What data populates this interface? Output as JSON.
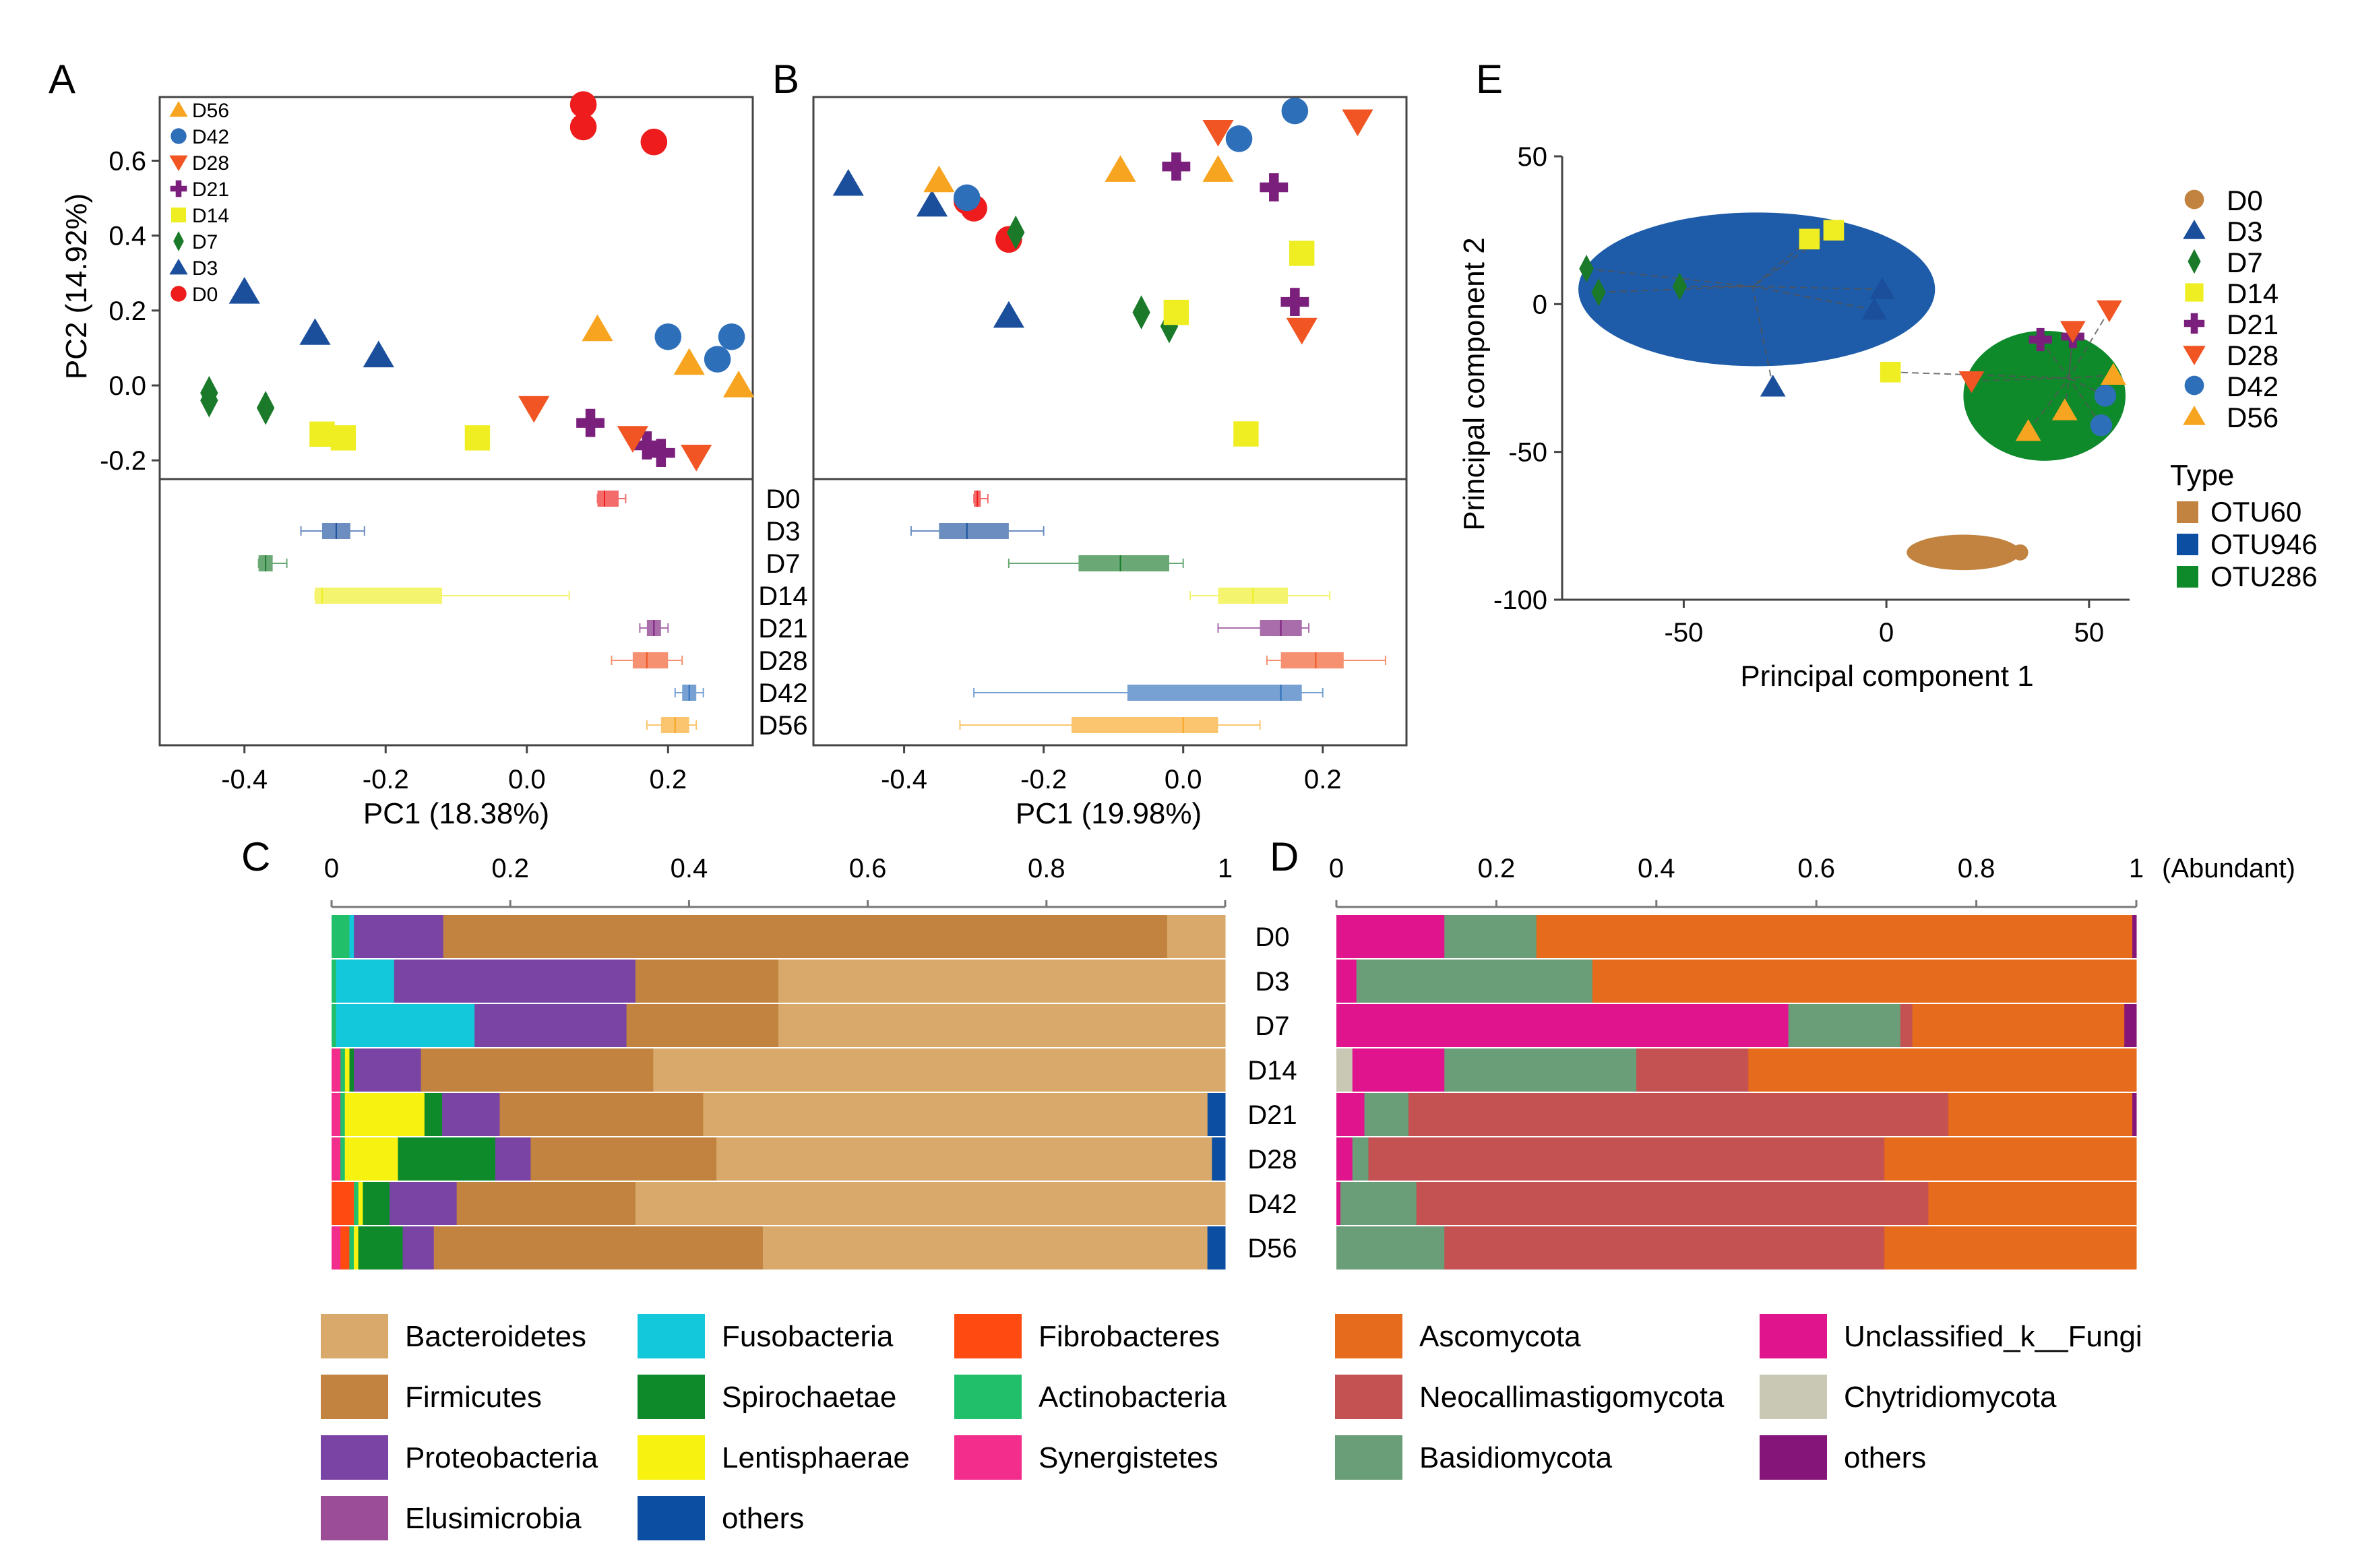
{
  "figure": {
    "panel_labels": [
      "A",
      "B",
      "C",
      "D",
      "E"
    ],
    "samples": [
      "D0",
      "D3",
      "D7",
      "D14",
      "D21",
      "D28",
      "D42",
      "D56"
    ],
    "sample_colors": {
      "D0": "#ee1c1c",
      "D3": "#1b4f9c",
      "D7": "#1a7a2a",
      "D14": "#eeee22",
      "D21": "#7b1f7d",
      "D28": "#f05523",
      "D42": "#2e6fba",
      "D56": "#f7a520"
    },
    "sample_shapes": {
      "D0": "circle",
      "D3": "triangle-up",
      "D7": "diamond",
      "D14": "square",
      "D21": "cross",
      "D28": "triangle-down",
      "D42": "circle",
      "D56": "triangle-up"
    },
    "legend_order_A": [
      "D56",
      "D42",
      "D28",
      "D21",
      "D14",
      "D7",
      "D3",
      "D0"
    ],
    "legend_order_E": [
      "D0",
      "D3",
      "D7",
      "D14",
      "D21",
      "D28",
      "D42",
      "D56"
    ]
  },
  "chart_data": [
    {
      "id": "A",
      "type": "scatter",
      "xlabel": "PC1 (18.38%)",
      "ylabel": "PC2 (14.92%)",
      "xlim": [
        -0.52,
        0.32
      ],
      "ylim": [
        -0.25,
        0.77
      ],
      "xticks": [
        "-0.4",
        "-0.2",
        "0.0",
        "0.2"
      ],
      "xtick_values": [
        -0.4,
        -0.2,
        0.0,
        0.2
      ],
      "yticks": [
        "-0.2",
        "0.0",
        "0.2",
        "0.4",
        "0.6"
      ],
      "ytick_values": [
        -0.2,
        0.0,
        0.2,
        0.4,
        0.6
      ],
      "points": {
        "D0": [
          [
            0.08,
            0.75
          ],
          [
            0.08,
            0.69
          ],
          [
            0.18,
            0.65
          ]
        ],
        "D3": [
          [
            -0.4,
            0.25
          ],
          [
            -0.3,
            0.14
          ],
          [
            -0.21,
            0.08
          ]
        ],
        "D7": [
          [
            -0.45,
            -0.02
          ],
          [
            -0.45,
            -0.04
          ],
          [
            -0.37,
            -0.06
          ]
        ],
        "D14": [
          [
            -0.29,
            -0.13
          ],
          [
            -0.26,
            -0.14
          ],
          [
            -0.07,
            -0.14
          ]
        ],
        "D21": [
          [
            0.09,
            -0.1
          ],
          [
            0.17,
            -0.16
          ],
          [
            0.19,
            -0.18
          ]
        ],
        "D28": [
          [
            0.01,
            -0.06
          ],
          [
            0.15,
            -0.14
          ],
          [
            0.24,
            -0.19
          ]
        ],
        "D42": [
          [
            0.2,
            0.13
          ],
          [
            0.29,
            0.13
          ],
          [
            0.27,
            0.07
          ]
        ],
        "D56": [
          [
            0.1,
            0.15
          ],
          [
            0.23,
            0.06
          ],
          [
            0.3,
            0.0
          ]
        ]
      },
      "boxplots": {
        "D0": {
          "whisker": [
            0.1,
            0.14
          ],
          "box": [
            0.1,
            0.13
          ],
          "median": 0.11
        },
        "D3": {
          "whisker": [
            -0.32,
            -0.23
          ],
          "box": [
            -0.29,
            -0.25
          ],
          "median": -0.27
        },
        "D7": {
          "whisker": [
            -0.38,
            -0.34
          ],
          "box": [
            -0.38,
            -0.36
          ],
          "median": -0.37
        },
        "D14": {
          "whisker": [
            -0.3,
            0.06
          ],
          "box": [
            -0.3,
            -0.12
          ],
          "median": -0.29
        },
        "D21": {
          "whisker": [
            0.16,
            0.2
          ],
          "box": [
            0.17,
            0.19
          ],
          "median": 0.18
        },
        "D28": {
          "whisker": [
            0.12,
            0.22
          ],
          "box": [
            0.15,
            0.2
          ],
          "median": 0.17
        },
        "D42": {
          "whisker": [
            0.21,
            0.25
          ],
          "box": [
            0.22,
            0.24
          ],
          "median": 0.23
        },
        "D56": {
          "whisker": [
            0.17,
            0.24
          ],
          "box": [
            0.19,
            0.23
          ],
          "median": 0.21
        }
      }
    },
    {
      "id": "B",
      "type": "scatter",
      "xlabel": "PC1 (19.98%)",
      "ylabel": "",
      "xlim": [
        -0.53,
        0.32
      ],
      "ylim": [
        -0.35,
        0.75
      ],
      "xticks": [
        "-0.4",
        "-0.2",
        "0.0",
        "0.2"
      ],
      "xtick_values": [
        -0.4,
        -0.2,
        0.0,
        0.2
      ],
      "points": {
        "D0": [
          [
            -0.31,
            0.45
          ],
          [
            -0.3,
            0.43
          ],
          [
            -0.25,
            0.34
          ]
        ],
        "D3": [
          [
            -0.48,
            0.5
          ],
          [
            -0.36,
            0.44
          ],
          [
            -0.25,
            0.12
          ]
        ],
        "D7": [
          [
            -0.24,
            0.36
          ],
          [
            -0.06,
            0.13
          ],
          [
            -0.02,
            0.09
          ]
        ],
        "D14": [
          [
            -0.01,
            0.13
          ],
          [
            0.17,
            0.3
          ],
          [
            0.09,
            -0.22
          ]
        ],
        "D21": [
          [
            -0.01,
            0.55
          ],
          [
            0.13,
            0.49
          ],
          [
            0.16,
            0.16
          ]
        ],
        "D28": [
          [
            0.05,
            0.65
          ],
          [
            0.25,
            0.68
          ],
          [
            0.17,
            0.08
          ]
        ],
        "D42": [
          [
            -0.31,
            0.46
          ],
          [
            0.08,
            0.63
          ],
          [
            0.16,
            0.71
          ]
        ],
        "D56": [
          [
            -0.35,
            0.51
          ],
          [
            -0.09,
            0.54
          ],
          [
            0.05,
            0.54
          ]
        ]
      },
      "boxplots": {
        "D0": {
          "whisker": [
            -0.3,
            -0.28
          ],
          "box": [
            -0.3,
            -0.29
          ],
          "median": -0.295
        },
        "D3": {
          "whisker": [
            -0.39,
            -0.2
          ],
          "box": [
            -0.35,
            -0.25
          ],
          "median": -0.31
        },
        "D7": {
          "whisker": [
            -0.25,
            0.0
          ],
          "box": [
            -0.15,
            -0.02
          ],
          "median": -0.09
        },
        "D14": {
          "whisker": [
            0.01,
            0.21
          ],
          "box": [
            0.05,
            0.15
          ],
          "median": 0.1
        },
        "D21": {
          "whisker": [
            0.05,
            0.18
          ],
          "box": [
            0.11,
            0.17
          ],
          "median": 0.14
        },
        "D28": {
          "whisker": [
            0.12,
            0.29
          ],
          "box": [
            0.14,
            0.23
          ],
          "median": 0.19
        },
        "D42": {
          "whisker": [
            -0.3,
            0.2
          ],
          "box": [
            -0.08,
            0.17
          ],
          "median": 0.14
        },
        "D56": {
          "whisker": [
            -0.32,
            0.11
          ],
          "box": [
            -0.16,
            0.05
          ],
          "median": 0.0
        }
      }
    },
    {
      "id": "C",
      "type": "bar",
      "orientation": "horizontal-stacked",
      "xlim": [
        0,
        1
      ],
      "xticks": [
        "0",
        "0.2",
        "0.4",
        "0.6",
        "0.8",
        "1"
      ],
      "xtick_values": [
        0,
        0.2,
        0.4,
        0.6,
        0.8,
        1
      ],
      "categories": [
        "D0",
        "D3",
        "D7",
        "D14",
        "D21",
        "D28",
        "D42",
        "D56"
      ],
      "series": [
        {
          "name": "Synergistetes",
          "color": "#f22d8c",
          "values": [
            0.0,
            0.0,
            0.0,
            0.01,
            0.01,
            0.01,
            0.0,
            0.01
          ]
        },
        {
          "name": "Fibrobacteres",
          "color": "#ff4a12",
          "values": [
            0.0,
            0.0,
            0.0,
            0.0,
            0.0,
            0.0,
            0.025,
            0.01
          ]
        },
        {
          "name": "Actinobacteria",
          "color": "#22bf6b",
          "values": [
            0.02,
            0.005,
            0.005,
            0.005,
            0.005,
            0.005,
            0.005,
            0.005
          ]
        },
        {
          "name": "Lentisphaerae",
          "color": "#f7f20f",
          "values": [
            0.0,
            0.0,
            0.0,
            0.005,
            0.09,
            0.06,
            0.005,
            0.005
          ]
        },
        {
          "name": "Spirochaetae",
          "color": "#0e8a2b",
          "values": [
            0.0,
            0.0,
            0.0,
            0.005,
            0.02,
            0.11,
            0.03,
            0.05
          ]
        },
        {
          "name": "Fusobacteria",
          "color": "#14c8dc",
          "values": [
            0.005,
            0.065,
            0.155,
            0.0,
            0.0,
            0.0,
            0.0,
            0.0
          ]
        },
        {
          "name": "Elusimicrobia",
          "color": "#9b4d97",
          "values": [
            0.0,
            0.0,
            0.0,
            0.0,
            0.0,
            0.0,
            0.0,
            0.0
          ]
        },
        {
          "name": "Proteobacteria",
          "color": "#7a44a5",
          "values": [
            0.1,
            0.27,
            0.17,
            0.075,
            0.065,
            0.04,
            0.075,
            0.035
          ]
        },
        {
          "name": "Firmicutes",
          "color": "#c1833f",
          "values": [
            0.81,
            0.16,
            0.17,
            0.26,
            0.23,
            0.21,
            0.2,
            0.37
          ]
        },
        {
          "name": "Bacteroidetes",
          "color": "#d8a96a",
          "values": [
            0.065,
            0.5,
            0.5,
            0.64,
            0.57,
            0.56,
            0.66,
            0.5
          ]
        },
        {
          "name": "others",
          "color": "#0b4ea2",
          "values": [
            0.0,
            0.0,
            0.0,
            0.0,
            0.02,
            0.015,
            0.0,
            0.02
          ]
        }
      ],
      "legend": [
        {
          "name": "Bacteroidetes",
          "color": "#d8a96a"
        },
        {
          "name": "Firmicutes",
          "color": "#c1833f"
        },
        {
          "name": "Proteobacteria",
          "color": "#7a44a5"
        },
        {
          "name": "Elusimicrobia",
          "color": "#9b4d97"
        },
        {
          "name": "Fusobacteria",
          "color": "#14c8dc"
        },
        {
          "name": "Spirochaetae",
          "color": "#0e8a2b"
        },
        {
          "name": "Lentisphaerae",
          "color": "#f7f20f"
        },
        {
          "name": "others",
          "color": "#0b4ea2"
        },
        {
          "name": "Fibrobacteres",
          "color": "#ff4a12"
        },
        {
          "name": "Actinobacteria",
          "color": "#22bf6b"
        },
        {
          "name": "Synergistetes",
          "color": "#f22d8c"
        }
      ]
    },
    {
      "id": "D",
      "type": "bar",
      "orientation": "horizontal-stacked",
      "xlim": [
        0,
        1
      ],
      "xticks": [
        "0",
        "0.2",
        "0.4",
        "0.6",
        "0.8",
        "1"
      ],
      "xtick_values": [
        0,
        0.2,
        0.4,
        0.6,
        0.8,
        1
      ],
      "axis_note": "(Abundant)",
      "categories": [
        "D0",
        "D3",
        "D7",
        "D14",
        "D21",
        "D28",
        "D42",
        "D56"
      ],
      "series": [
        {
          "name": "Chytridiomycota",
          "color": "#c8c8b4",
          "values": [
            0.0,
            0.0,
            0.0,
            0.02,
            0.0,
            0.0,
            0.0,
            0.0
          ]
        },
        {
          "name": "Unclassified_k__Fungi",
          "color": "#e0148c",
          "values": [
            0.135,
            0.025,
            0.565,
            0.115,
            0.035,
            0.02,
            0.005,
            0.0
          ]
        },
        {
          "name": "Basidiomycota",
          "color": "#6a9e78",
          "values": [
            0.115,
            0.295,
            0.14,
            0.24,
            0.055,
            0.02,
            0.095,
            0.135
          ]
        },
        {
          "name": "Neocallimastigomycota",
          "color": "#c45252",
          "values": [
            0.0,
            0.0,
            0.015,
            0.14,
            0.675,
            0.645,
            0.64,
            0.55
          ]
        },
        {
          "name": "Ascomycota",
          "color": "#e66b1c",
          "values": [
            0.745,
            0.68,
            0.265,
            0.485,
            0.23,
            0.315,
            0.26,
            0.315
          ]
        },
        {
          "name": "others",
          "color": "#86157a",
          "values": [
            0.005,
            0.0,
            0.015,
            0.0,
            0.005,
            0.0,
            0.0,
            0.0
          ]
        }
      ],
      "legend": [
        {
          "name": "Ascomycota",
          "color": "#e66b1c"
        },
        {
          "name": "Neocallimastigomycota",
          "color": "#c45252"
        },
        {
          "name": "Basidiomycota",
          "color": "#6a9e78"
        },
        {
          "name": "Unclassified_k__Fungi",
          "color": "#e0148c"
        },
        {
          "name": "Chytridiomycota",
          "color": "#c8c8b4"
        },
        {
          "name": "others",
          "color": "#86157a"
        }
      ]
    },
    {
      "id": "E",
      "type": "scatter",
      "xlabel": "Principal component 1",
      "ylabel": "Principal component 2",
      "xlim": [
        -80,
        60
      ],
      "ylim": [
        -100,
        50
      ],
      "xticks": [
        "-50",
        "0",
        "50"
      ],
      "xtick_values": [
        -50,
        0,
        50
      ],
      "yticks": [
        "50",
        "0",
        "-50",
        "-100"
      ],
      "ytick_values": [
        50,
        0,
        -50,
        -100
      ],
      "points": {
        "D3": [
          [
            -28,
            -28
          ],
          [
            -1,
            5
          ],
          [
            -3,
            -2
          ]
        ],
        "D7": [
          [
            -74,
            12
          ],
          [
            -71,
            4
          ],
          [
            -51,
            6
          ]
        ],
        "D14": [
          [
            -19,
            22
          ],
          [
            -13,
            25
          ],
          [
            1,
            -23
          ]
        ],
        "D21": [
          [
            38,
            -12
          ],
          [
            46,
            -11
          ]
        ],
        "D28": [
          [
            21,
            -26
          ],
          [
            46,
            -9
          ],
          [
            55,
            -2
          ]
        ],
        "D42": [
          [
            54,
            -31
          ],
          [
            53,
            -41
          ]
        ],
        "D56": [
          [
            35,
            -43
          ],
          [
            44,
            -36
          ],
          [
            56,
            -24
          ]
        ]
      },
      "centroids": [
        [
          -33,
          6
        ],
        [
          45,
          -25
        ]
      ],
      "ellipses": [
        {
          "type": "OTU946",
          "cx": -32,
          "cy": 5,
          "rx": 44,
          "ry": 26
        },
        {
          "type": "OTU286",
          "cx": 39,
          "cy": -31,
          "rx": 20,
          "ry": 22
        },
        {
          "type": "OTU60",
          "cx": 19,
          "cy": -84,
          "rx": 14,
          "ry": 6
        }
      ],
      "legend_title": "Type",
      "types": [
        {
          "name": "OTU60",
          "color": "#c1833f"
        },
        {
          "name": "OTU946",
          "color": "#0b4ea2"
        },
        {
          "name": "OTU286",
          "color": "#0e8a2b"
        }
      ]
    }
  ]
}
